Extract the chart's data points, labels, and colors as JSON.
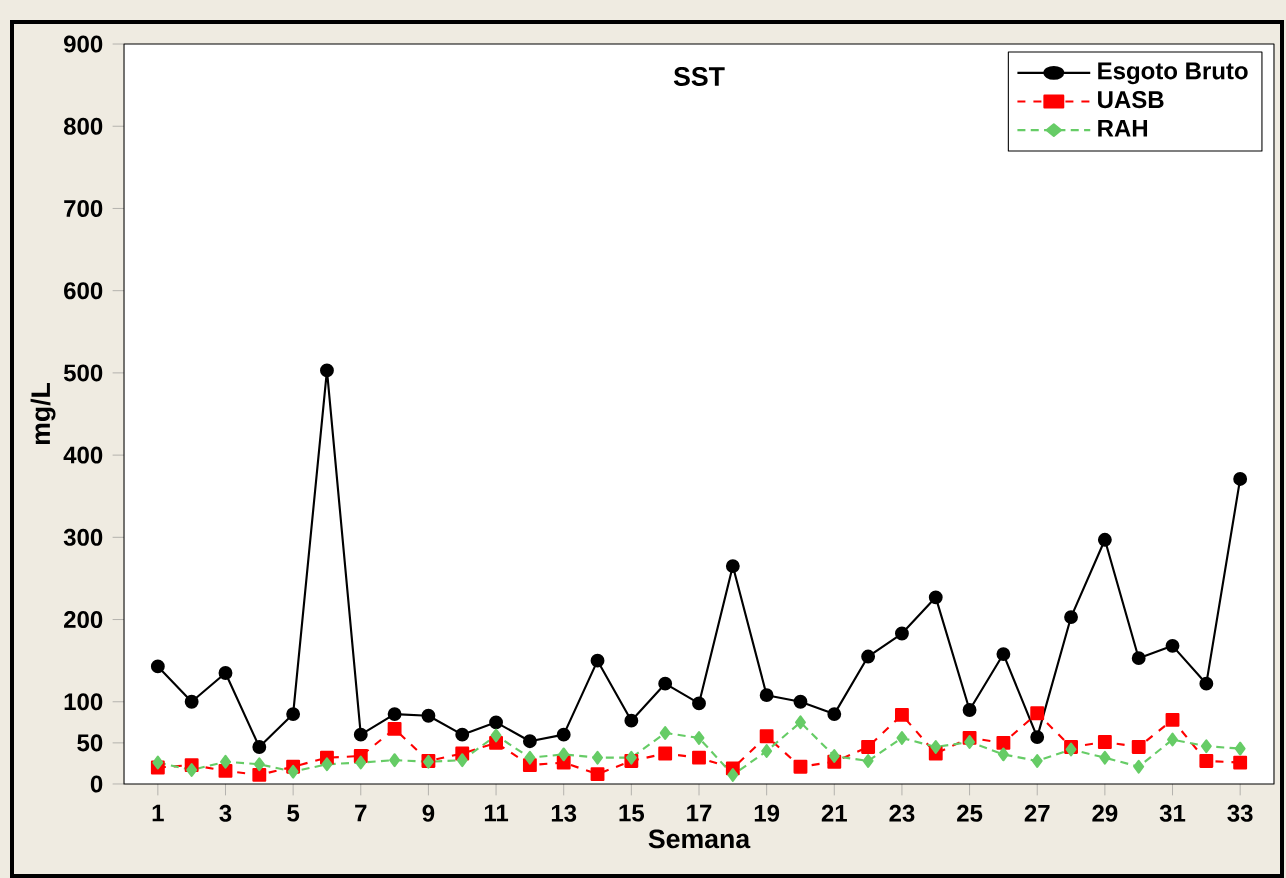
{
  "chart_data": {
    "type": "line",
    "title": "SST",
    "xlabel": "Semana",
    "ylabel": "mg/L",
    "x": [
      1,
      2,
      3,
      4,
      5,
      6,
      7,
      8,
      9,
      10,
      11,
      12,
      13,
      14,
      15,
      16,
      17,
      18,
      19,
      20,
      21,
      22,
      23,
      24,
      25,
      26,
      27,
      28,
      29,
      30,
      31,
      32,
      33
    ],
    "xlim": [
      0,
      34
    ],
    "xticks": [
      1,
      3,
      5,
      7,
      9,
      11,
      13,
      15,
      17,
      19,
      21,
      23,
      25,
      27,
      29,
      31,
      33
    ],
    "ylim": [
      0,
      900
    ],
    "yticks": [
      0,
      50,
      100,
      200,
      300,
      400,
      500,
      600,
      700,
      800,
      900
    ],
    "grid": false,
    "legend": "top right",
    "series": [
      {
        "name": "Esgoto Bruto",
        "color": "#000000",
        "marker": "circle",
        "line_style": "solid",
        "values": [
          143,
          100,
          135,
          45,
          85,
          503,
          60,
          85,
          83,
          60,
          75,
          52,
          60,
          150,
          77,
          122,
          98,
          265,
          108,
          100,
          85,
          155,
          183,
          227,
          90,
          158,
          57,
          203,
          297,
          153,
          168,
          122,
          371
        ]
      },
      {
        "name": "UASB",
        "color": "#ff0000",
        "marker": "square",
        "line_style": "dashed",
        "values": [
          20,
          23,
          16,
          11,
          21,
          32,
          34,
          67,
          28,
          37,
          50,
          23,
          26,
          12,
          28,
          37,
          32,
          19,
          58,
          21,
          27,
          45,
          84,
          37,
          56,
          50,
          86,
          45,
          51,
          45,
          78,
          28,
          26
        ]
      },
      {
        "name": "RAH",
        "color": "#66cc66",
        "marker": "diamond",
        "line_style": "dotted",
        "values": [
          26,
          17,
          27,
          24,
          15,
          24,
          26,
          29,
          27,
          29,
          59,
          32,
          36,
          32,
          32,
          62,
          56,
          11,
          40,
          75,
          34,
          28,
          56,
          45,
          51,
          36,
          28,
          42,
          32,
          21,
          54,
          46,
          43
        ]
      }
    ]
  }
}
